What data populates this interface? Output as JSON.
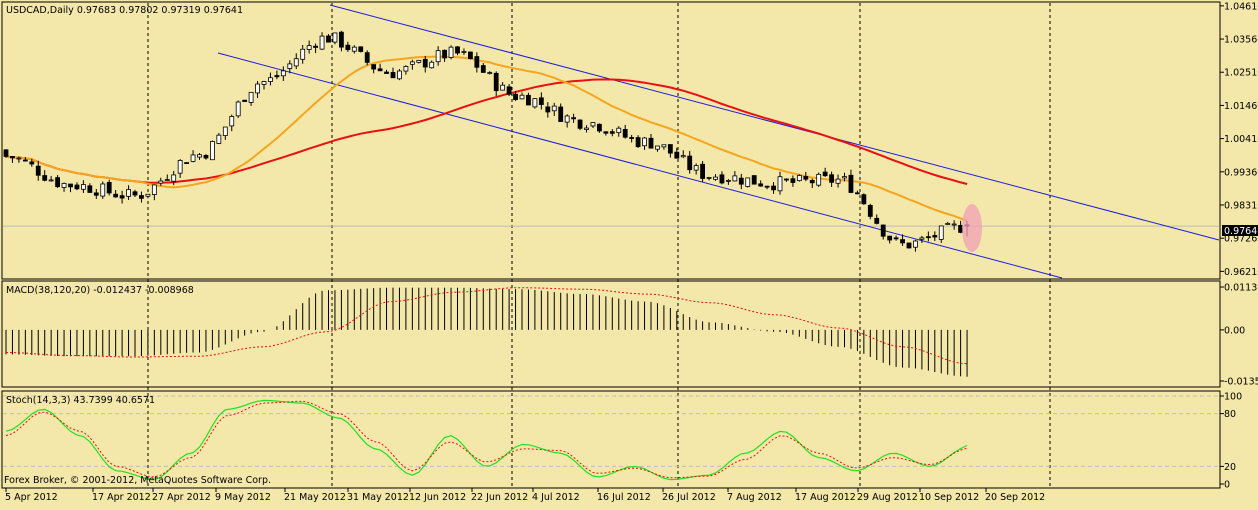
{
  "colors": {
    "background": "#f3e7a9",
    "candle_up": "#ffffff",
    "candle_down": "#000000",
    "wick": "#000000",
    "ma_fast": "#f5a51e",
    "ma_slow": "#e81010",
    "channel": "#1c1ce0",
    "macd_signal": "#e81010",
    "stoch_main": "#22e022",
    "stoch_signal": "#e81010",
    "highlight": "#f2a0b8",
    "current_price_line": "#bdbdbd"
  },
  "main_panel": {
    "title": "USDCAD,Daily  0.97683 0.97802 0.97319 0.97641",
    "current_price": "0.97641",
    "y_ticks": [
      "1.04610",
      "1.03560",
      "1.02510",
      "1.01460",
      "1.00410",
      "0.99360",
      "0.98310",
      "0.97260",
      "0.96210"
    ]
  },
  "macd_panel": {
    "title": "MACD(38,120,20) -0.012437 -0.008968",
    "y_ticks": [
      "0.01138",
      "0.00",
      "-0.01357"
    ]
  },
  "stoch_panel": {
    "title": "Stoch(14,3,3) 43.7399 40.6571",
    "y_ticks": [
      "100",
      "80",
      "20",
      "0"
    ]
  },
  "copyright": "Forex Broker, © 2001-2012, MetaQuotes Software Corp.",
  "x_ticks": [
    "5 Apr 2012",
    "17 Apr 2012",
    "27 Apr 2012",
    "9 May 2012",
    "21 May 2012",
    "31 May 2012",
    "12 Jun 2012",
    "22 Jun 2012",
    "4 Jul 2012",
    "16 Jul 2012",
    "26 Jul 2012",
    "7 Aug 2012",
    "17 Aug 2012",
    "29 Aug 2012",
    "10 Sep 2012",
    "20 Sep 2012"
  ],
  "chart_data": {
    "type": "candlestick",
    "symbol": "USDCAD",
    "timeframe": "Daily",
    "last_bar": {
      "open": 0.97683,
      "high": 0.97802,
      "low": 0.97319,
      "close": 0.97641
    },
    "y_range": [
      0.96,
      1.047
    ],
    "ohlc_anchors": [
      {
        "date": "5 Apr 2012",
        "close": 0.9985
      },
      {
        "date": "17 Apr 2012",
        "close": 0.9895
      },
      {
        "date": "27 Apr 2012",
        "close": 0.986
      },
      {
        "date": "9 May 2012",
        "close": 0.999
      },
      {
        "date": "21 May 2012",
        "close": 1.022
      },
      {
        "date": "31 May 2012",
        "close": 1.036
      },
      {
        "date": "12 Jun 2012",
        "close": 1.025
      },
      {
        "date": "22 Jun 2012",
        "close": 1.031
      },
      {
        "date": "4 Jul 2012",
        "close": 1.0175
      },
      {
        "date": "16 Jul 2012",
        "close": 1.0095
      },
      {
        "date": "26 Jul 2012",
        "close": 1.003
      },
      {
        "date": "7 Aug 2012",
        "close": 0.9925
      },
      {
        "date": "17 Aug 2012",
        "close": 0.99
      },
      {
        "date": "29 Aug 2012",
        "close": 0.991
      },
      {
        "date": "10 Sep 2012",
        "close": 0.9705
      },
      {
        "date": "20 Sep 2012",
        "close": 0.97641
      }
    ],
    "macd": {
      "params": [
        38,
        120,
        20
      ],
      "main": -0.012437,
      "signal": -0.008968,
      "y_range": [
        -0.01357,
        0.01138
      ],
      "histogram_anchors": [
        -0.0065,
        -0.007,
        -0.007,
        -0.006,
        -0.0005,
        0.0105,
        0.0112,
        0.0112,
        0.0108,
        0.0095,
        0.0075,
        0.002,
        -0.0005,
        -0.0045,
        -0.01,
        -0.0124
      ],
      "signal_anchors": [
        -0.006,
        -0.0068,
        -0.0072,
        -0.007,
        -0.0045,
        -0.0005,
        0.0075,
        0.01,
        0.0112,
        0.0108,
        0.0095,
        0.0072,
        0.004,
        0.0005,
        -0.0045,
        -0.009
      ]
    },
    "stochastic": {
      "params": [
        14,
        3,
        3
      ],
      "main": 43.7399,
      "signal": 40.6571,
      "levels": [
        80,
        20
      ],
      "main_anchors": [
        60,
        85,
        55,
        15,
        5,
        35,
        85,
        95,
        92,
        75,
        40,
        10,
        55,
        20,
        45,
        35,
        8,
        20,
        5,
        10,
        35,
        60,
        30,
        15,
        35,
        20,
        42
      ],
      "signal_anchors": [
        55,
        82,
        60,
        20,
        8,
        30,
        78,
        92,
        94,
        80,
        48,
        15,
        48,
        25,
        40,
        38,
        12,
        18,
        7,
        9,
        28,
        55,
        35,
        18,
        30,
        22,
        40
      ]
    }
  }
}
